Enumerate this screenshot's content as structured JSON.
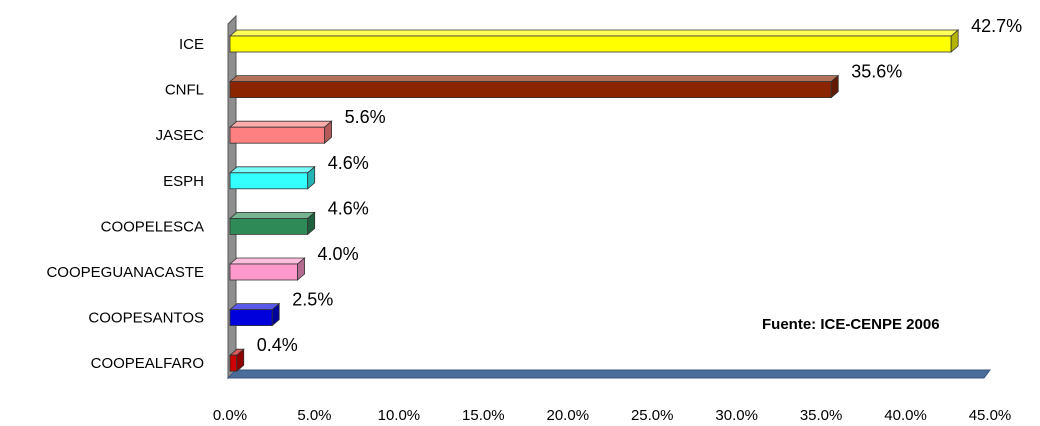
{
  "chart_data": {
    "type": "bar",
    "orientation": "horizontal",
    "categories": [
      "ICE",
      "CNFL",
      "JASEC",
      "ESPH",
      "COOPELESCA",
      "COOPEGUANACASTE",
      "COOPESANTOS",
      "COOPEALFARO"
    ],
    "values": [
      42.7,
      35.6,
      5.6,
      4.6,
      4.6,
      4.0,
      2.5,
      0.4
    ],
    "value_labels": [
      "42.7%",
      "35.6%",
      "5.6%",
      "4.6%",
      "4.6%",
      "4.0%",
      "2.5%",
      "0.4%"
    ],
    "colors": [
      "#ffff00",
      "#8b2500",
      "#ff8080",
      "#33ffff",
      "#2e8b57",
      "#ff99cc",
      "#0000dd",
      "#cc0000"
    ],
    "xlim": [
      0,
      45
    ],
    "xticks": [
      0,
      5,
      10,
      15,
      20,
      25,
      30,
      35,
      40,
      45
    ],
    "xtick_labels": [
      "0.0%",
      "5.0%",
      "10.0%",
      "15.0%",
      "20.0%",
      "25.0%",
      "30.0%",
      "35.0%",
      "40.0%",
      "45.0%"
    ],
    "grid": false,
    "legend": "none",
    "annotation": "Fuente: ICE-CENPE 2006"
  }
}
